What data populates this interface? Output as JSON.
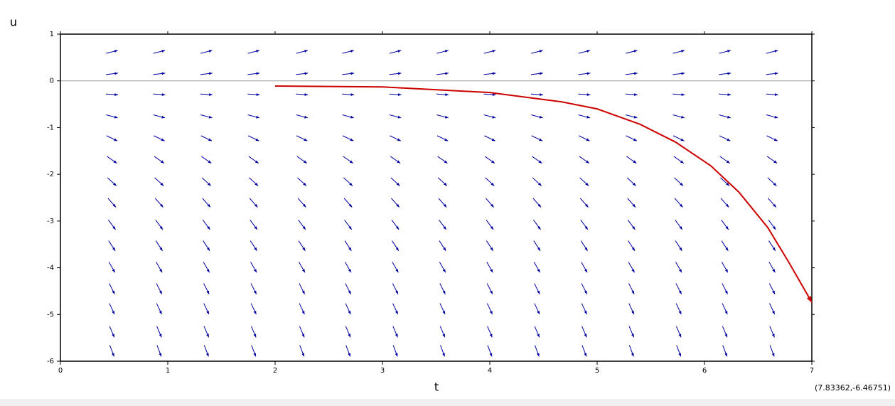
{
  "chart_data": {
    "type": "direction-field",
    "x_label": "t",
    "y_label": "u",
    "status": "(7.83362,-6.46751)",
    "xlim": [
      0,
      7
    ],
    "ylim": [
      -6,
      1
    ],
    "xticks": [
      0,
      1,
      2,
      3,
      4,
      5,
      6,
      7
    ],
    "yticks": [
      1,
      0,
      -1,
      -2,
      -3,
      -4,
      -5,
      -6
    ],
    "zero_line": true,
    "field": {
      "color": "#0000a0",
      "t": [
        0.48,
        0.92,
        1.36,
        1.8,
        2.25,
        2.68,
        3.12,
        3.56,
        4.0,
        4.44,
        4.88,
        5.32,
        5.76,
        6.19,
        6.63
      ],
      "u": [
        0.62,
        0.15,
        -0.29,
        -0.76,
        -1.23,
        -1.69,
        -2.16,
        -2.61,
        -3.08,
        -3.53,
        -3.99,
        -4.45,
        -4.88,
        -5.37,
        -5.78
      ],
      "slopes": [
        0.57,
        0.28,
        -0.14,
        -0.6,
        -1.1,
        -1.6,
        -2.1,
        -2.6,
        -3.1,
        -3.5,
        -4.0,
        -4.5,
        -4.9,
        -5.4,
        -6.0
      ]
    },
    "solution": {
      "color": "#cc0000",
      "x": [
        2,
        3,
        4,
        4.67,
        5,
        5.4,
        5.73,
        6.06,
        6.32,
        6.59,
        6.79,
        7
      ],
      "values": [
        -0.11,
        -0.13,
        -0.25,
        -0.45,
        -0.6,
        -0.93,
        -1.31,
        -1.82,
        -2.38,
        -3.14,
        -3.9,
        -4.74
      ]
    }
  }
}
